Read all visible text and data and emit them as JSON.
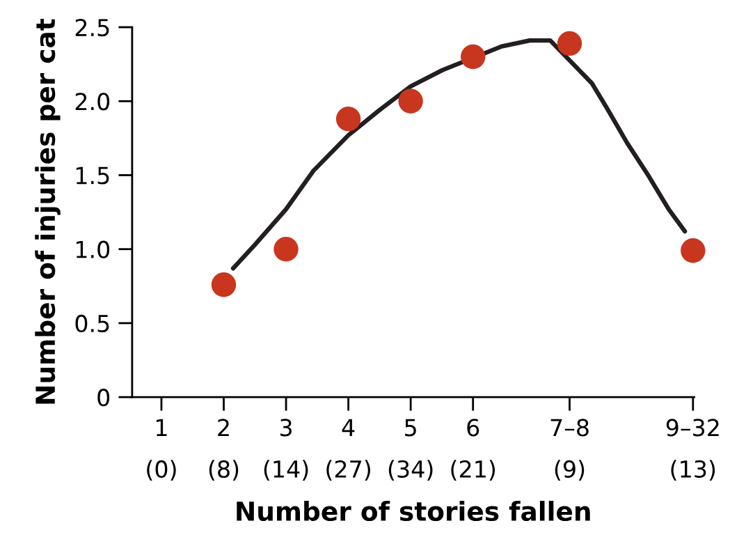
{
  "chart_data": {
    "type": "scatter",
    "xlabel": "Number of stories fallen",
    "ylabel": "Number of injuries per cat",
    "x": [
      2,
      3,
      4,
      5,
      6,
      7.55,
      9.53
    ],
    "series": [
      {
        "color": "#c8361f",
        "values": [
          0.76,
          1.0,
          1.88,
          2.0,
          2.3,
          2.39,
          0.99
        ],
        "marker": "circle"
      },
      {
        "type": "line",
        "color": "#231f20",
        "x": [
          2.15,
          2.5,
          3,
          3.44,
          4,
          4.5,
          5,
          5.51,
          6.46,
          6.91,
          7.24,
          7.91,
          8.14,
          8.47,
          8.81,
          9.14,
          9.4
        ],
        "values": [
          0.87,
          1.03,
          1.27,
          1.53,
          1.77,
          1.94,
          2.1,
          2.21,
          2.37,
          2.41,
          2.41,
          2.12,
          1.96,
          1.72,
          1.5,
          1.27,
          1.12
        ],
        "marker": "none",
        "line_style": "solid"
      }
    ],
    "xlim": [
      0.53,
      9.55
    ],
    "xticks": [
      1,
      2,
      3,
      4,
      5,
      6,
      {
        "value": 7.55,
        "label": "7–8"
      },
      {
        "value": 9.53,
        "label": "9–32"
      }
    ],
    "annotations": [
      "(0)",
      "(8)",
      "(14)",
      "(27)",
      "(34)",
      "(21)",
      "(9)",
      "(13)"
    ],
    "ylim": [
      0,
      2.5
    ],
    "yticks": [
      0,
      {
        "value": 0.5,
        "label": "0.5"
      },
      {
        "value": 1.0,
        "label": "1.0"
      },
      {
        "value": 1.5,
        "label": "1.5"
      },
      {
        "value": 2.0,
        "label": "2.0"
      },
      {
        "value": 2.5,
        "label": "2.5"
      }
    ],
    "grid": false,
    "legend": false
  }
}
